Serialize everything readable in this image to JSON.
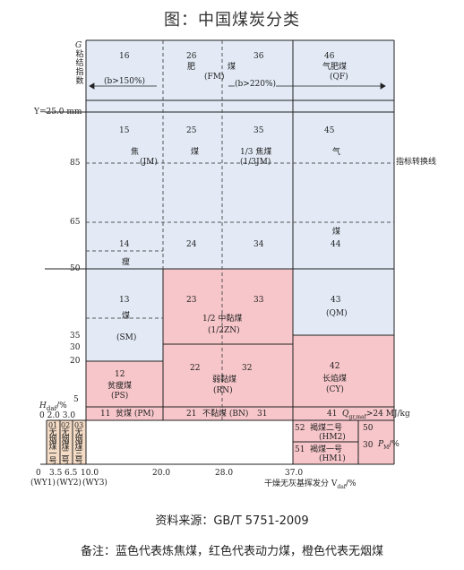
{
  "title": "图：中国煤炭分类",
  "axis": {
    "y_letter": "G",
    "y_name": "粘结指数",
    "y_special": "Y=25.0 mm",
    "y_ticks": [
      "85",
      "65",
      "50",
      "35",
      "30",
      "20",
      "5"
    ],
    "hdaf_label": "H",
    "hdaf_sub": "daf",
    "hdaf_unit": "/%",
    "hdaf_ticks": "0 2.0 3.0",
    "x_ticks": [
      "0",
      "3.5",
      "6.5",
      "10.0",
      "20.0",
      "28.0",
      "37.0"
    ],
    "x_wy": [
      "(WY1)",
      "(WY2)",
      "(WY3)"
    ],
    "x_label": "干燥无灰基挥发分 V",
    "x_label_sub": "daf",
    "x_label_unit": "/%",
    "switch_label": "指标转换线",
    "qgr_label": "Q",
    "qgr_sub": "gr,maf",
    "qgr_text": ">24 MJ/kg",
    "pm_label": "P",
    "pm_sub": "M",
    "pm_unit": "/%"
  },
  "cells": {
    "c16": "16",
    "c26": "26",
    "c36": "36",
    "c46": "46",
    "fei": "肥",
    "mei_top": "煤",
    "fm": "(FM)",
    "b150": "(b>150%)",
    "b220": "(b>220%)",
    "qifeimei": "气肥煤",
    "qf": "(QF)",
    "c15": "15",
    "c25": "25",
    "c35": "35",
    "c45": "45",
    "jiao": "焦",
    "mei_jiao": "煤",
    "jm": "(JM)",
    "one_third": "1/3 焦煤",
    "one_third_code": "(1/3JM)",
    "qi": "气",
    "c14": "14",
    "c24": "24",
    "c34": "34",
    "c44": "44",
    "mei_44": "煤",
    "shou": "瘦",
    "c13": "13",
    "mei_13": "煤",
    "sm": "(SM)",
    "c23": "23",
    "c33": "33",
    "half_zn": "1/2 中黏煤",
    "half_zn_code": "(1/2ZN)",
    "c43": "43",
    "qm": "(QM)",
    "c22": "22",
    "c32": "32",
    "ruonianmei": "弱黏煤",
    "rn": "(RN)",
    "c42": "42",
    "changyanmei": "长焰煤",
    "cy": "(CY)",
    "c12": "12",
    "pinshoumei": "贫瘦煤",
    "ps": "(PS)",
    "c11": "11",
    "pinmei": "贫煤 (PM)",
    "c21": "21",
    "bunianmei": "不黏煤 (BN)",
    "c31": "31",
    "c41": "41",
    "c52": "52",
    "hm2": "褐煤二号",
    "hm2_code": "(HM2)",
    "c51": "51",
    "hm1": "褐煤一号",
    "hm1_code": "(HM1)",
    "c50": "50",
    "c30": "30",
    "wy01": "01",
    "wy02": "02",
    "wy03": "03",
    "wy01_t": "无烟煤一号",
    "wy02_t": "无烟煤二号",
    "wy03_t": "无烟煤三号"
  },
  "source": "资料来源：GB/T 5751-2009",
  "note": "备注：蓝色代表炼焦煤，红色代表动力煤，橙色代表无烟煤"
}
